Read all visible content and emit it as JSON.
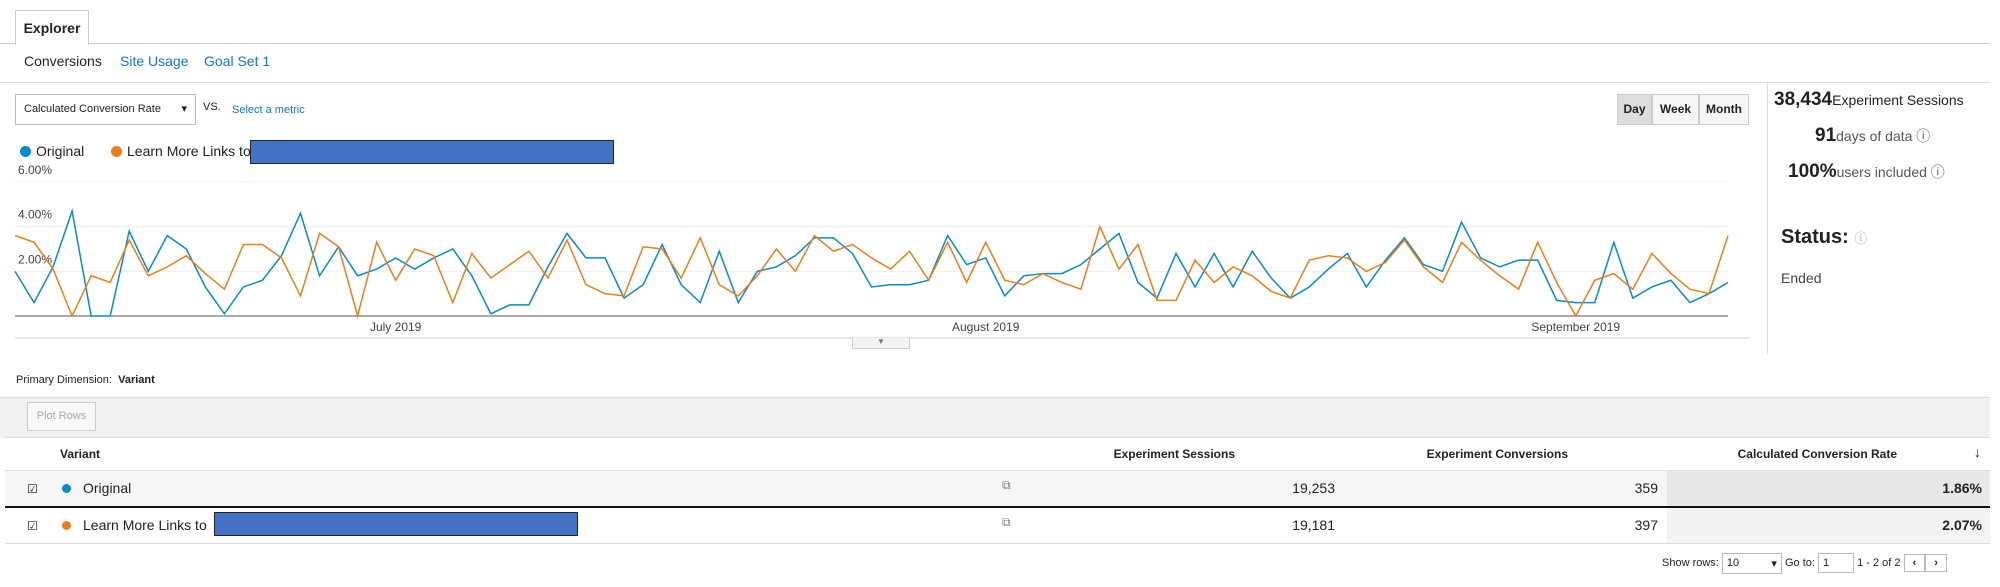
{
  "explorer_tab": "Explorer",
  "subtabs": [
    "Conversions",
    "Site Usage",
    "Goal Set 1"
  ],
  "metric_selector": {
    "metric": "Calculated Conversion Rate",
    "vs": "VS.",
    "select": "Select a metric"
  },
  "period_buttons": [
    "Day",
    "Week",
    "Month"
  ],
  "stats": [
    {
      "value": "38,434",
      "label": "Experiment Sessions"
    },
    {
      "value": "91",
      "label": "days of data"
    },
    {
      "value": "100%",
      "label": "users included"
    }
  ],
  "status": {
    "label": "Status:",
    "value": "Ended"
  },
  "chart_data": {
    "type": "line",
    "categories": [
      null,
      null,
      null,
      null,
      null,
      null,
      null,
      null,
      null,
      null,
      null,
      null,
      null,
      null,
      null,
      null,
      null,
      null,
      null,
      null,
      "July 2019",
      null,
      null,
      null,
      null,
      null,
      null,
      null,
      null,
      null,
      null,
      null,
      null,
      null,
      null,
      null,
      null,
      null,
      null,
      null,
      null,
      null,
      null,
      null,
      null,
      null,
      null,
      null,
      null,
      null,
      null,
      "August 2019",
      null,
      null,
      null,
      null,
      null,
      null,
      null,
      null,
      null,
      null,
      null,
      null,
      null,
      null,
      null,
      null,
      null,
      null,
      null,
      null,
      null,
      null,
      null,
      null,
      null,
      null,
      null,
      null,
      null,
      null,
      "September 2019",
      null,
      null,
      null,
      null,
      null,
      null,
      null,
      null
    ],
    "series": [
      {
        "name": "Original",
        "color": "#058dc7",
        "values": [
          2.0,
          0.6,
          2.2,
          4.7,
          0,
          0,
          3.8,
          2.0,
          3.6,
          3.0,
          1.3,
          0.1,
          1.3,
          1.6,
          2.7,
          4.6,
          1.8,
          3.1,
          1.8,
          2.1,
          2.6,
          2.1,
          2.6,
          3.0,
          1.8,
          0.1,
          0.5,
          0.5,
          2.2,
          3.7,
          2.6,
          2.6,
          0.8,
          1.4,
          3.2,
          1.4,
          0.6,
          2.9,
          0.6,
          2.0,
          2.2,
          2.7,
          3.5,
          3.5,
          2.8,
          1.3,
          1.4,
          1.4,
          1.6,
          3.6,
          2.3,
          2.6,
          0.9,
          1.8,
          1.9,
          1.9,
          2.3,
          3.0,
          3.7,
          1.5,
          0.8,
          2.8,
          1.3,
          2.8,
          1.3,
          2.9,
          1.7,
          0.8,
          1.3,
          2.1,
          2.8,
          1.3,
          2.5,
          3.5,
          2.3,
          2.0,
          4.2,
          2.6,
          2.2,
          2.5,
          2.5,
          0.7,
          0.6,
          0.6,
          3.3,
          0.8,
          1.3,
          1.6,
          0.6,
          1.0,
          1.5
        ]
      },
      {
        "name": "Learn More Links to",
        "color": "#ed7e17",
        "values": [
          3.6,
          3.3,
          2.1,
          0,
          1.8,
          1.5,
          3.4,
          1.8,
          2.2,
          2.7,
          1.9,
          1.2,
          3.2,
          3.2,
          2.6,
          0.9,
          3.7,
          3.1,
          0,
          3.3,
          1.6,
          3.0,
          2.7,
          0.6,
          2.8,
          1.7,
          2.3,
          2.9,
          1.7,
          3.4,
          1.4,
          1.0,
          0.9,
          3.1,
          3.0,
          1.7,
          3.5,
          1.4,
          0.9,
          1.8,
          3.0,
          2.0,
          3.6,
          2.9,
          3.2,
          2.6,
          2.1,
          2.9,
          1.6,
          3.3,
          1.5,
          3.3,
          1.6,
          1.4,
          1.9,
          1.5,
          1.2,
          4.0,
          2.1,
          3.2,
          0.7,
          0.7,
          2.5,
          1.5,
          2.2,
          1.8,
          1.1,
          0.8,
          2.5,
          2.7,
          2.6,
          2.0,
          2.4,
          3.4,
          2.2,
          1.5,
          3.3,
          2.5,
          1.8,
          1.2,
          3.3,
          1.5,
          0,
          1.6,
          1.9,
          1.2,
          2.8,
          1.9,
          1.2,
          1.0,
          3.6
        ]
      }
    ],
    "ylim": [
      0,
      6
    ],
    "yticks": [
      {
        "value": 2,
        "label": "2.00%"
      },
      {
        "value": 4,
        "label": "4.00%"
      },
      {
        "value": 6,
        "label": "6.00%"
      }
    ],
    "grid": true
  },
  "primary_dimension": {
    "label": "Primary Dimension:",
    "value": "Variant"
  },
  "plot_rows": "Plot Rows",
  "table": {
    "headers": [
      "Variant",
      "Experiment Sessions",
      "Experiment Conversions",
      "Calculated Conversion Rate"
    ],
    "rows": [
      [
        "Original",
        "19,253",
        "359",
        "1.86%"
      ],
      [
        "Learn More Links to",
        "19,181",
        "397",
        "2.07%"
      ]
    ]
  },
  "pager": {
    "show_rows": "Show rows:",
    "rows": "10",
    "goto": "Go to:",
    "page": "1",
    "range": "1 - 2 of 2"
  }
}
